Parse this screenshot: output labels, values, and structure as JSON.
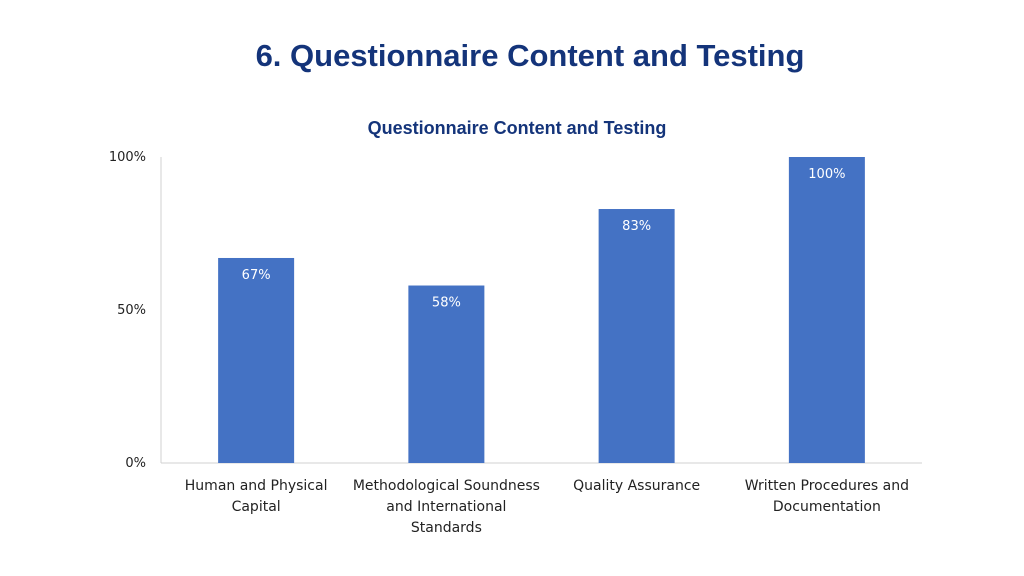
{
  "slide": {
    "title": "6. Questionnaire Content and Testing"
  },
  "colors": {
    "bar": "#4472c4",
    "title": "#14347a",
    "axis": "#d0d0d0"
  },
  "chart_data": {
    "type": "bar",
    "title": "Questionnaire Content and Testing",
    "xlabel": "",
    "ylabel": "",
    "categories": [
      [
        "Human and Physical",
        "Capital"
      ],
      [
        "Methodological Soundness",
        "and International",
        "Standards"
      ],
      [
        "Quality Assurance"
      ],
      [
        "Written Procedures and",
        "Documentation"
      ]
    ],
    "values": [
      67,
      58,
      83,
      100
    ],
    "data_labels": [
      "67%",
      "58%",
      "83%",
      "100%"
    ],
    "yticks": [
      "0%",
      "50%",
      "100%"
    ],
    "ytick_values": [
      0,
      50,
      100
    ],
    "ylim": [
      0,
      100
    ],
    "grid": false,
    "legend": "none"
  }
}
